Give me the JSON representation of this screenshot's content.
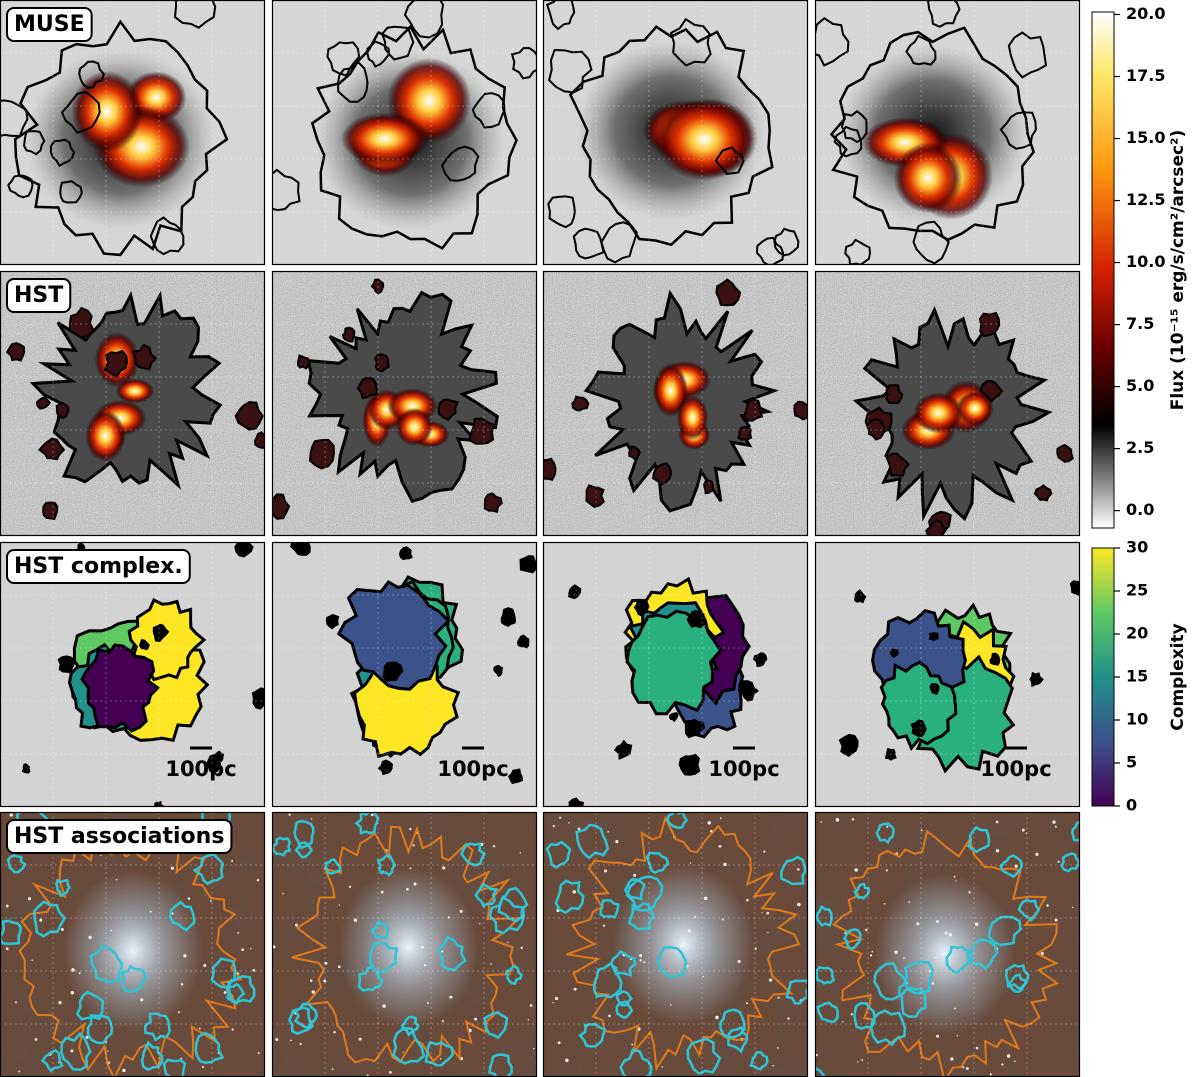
{
  "rows": [
    {
      "label": "MUSE"
    },
    {
      "label": "HST"
    },
    {
      "label": "HST complex."
    },
    {
      "label": "HST associations"
    }
  ],
  "scale_bars": [
    "100pc",
    "100pc",
    "100pc",
    "100pc"
  ],
  "colorbars": [
    {
      "label": "Flux (10⁻¹⁵ erg/s/cm²/arcsec²)",
      "ylim": [
        -0.7,
        20.1
      ],
      "yticks": [
        {
          "value": 0,
          "label": "0.0"
        },
        {
          "value": 2.5,
          "label": "2.5"
        },
        {
          "value": 5,
          "label": "5.0"
        },
        {
          "value": 7.5,
          "label": "7.5"
        },
        {
          "value": 10,
          "label": "10.0"
        },
        {
          "value": 12.5,
          "label": "12.5"
        },
        {
          "value": 15,
          "label": "15.0"
        },
        {
          "value": 17.5,
          "label": "17.5"
        },
        {
          "value": 20,
          "label": "20.0"
        }
      ]
    },
    {
      "label": "Complexity",
      "ylim": [
        0,
        30
      ],
      "yticks": [
        0,
        5,
        10,
        15,
        20,
        25,
        30
      ]
    }
  ]
}
